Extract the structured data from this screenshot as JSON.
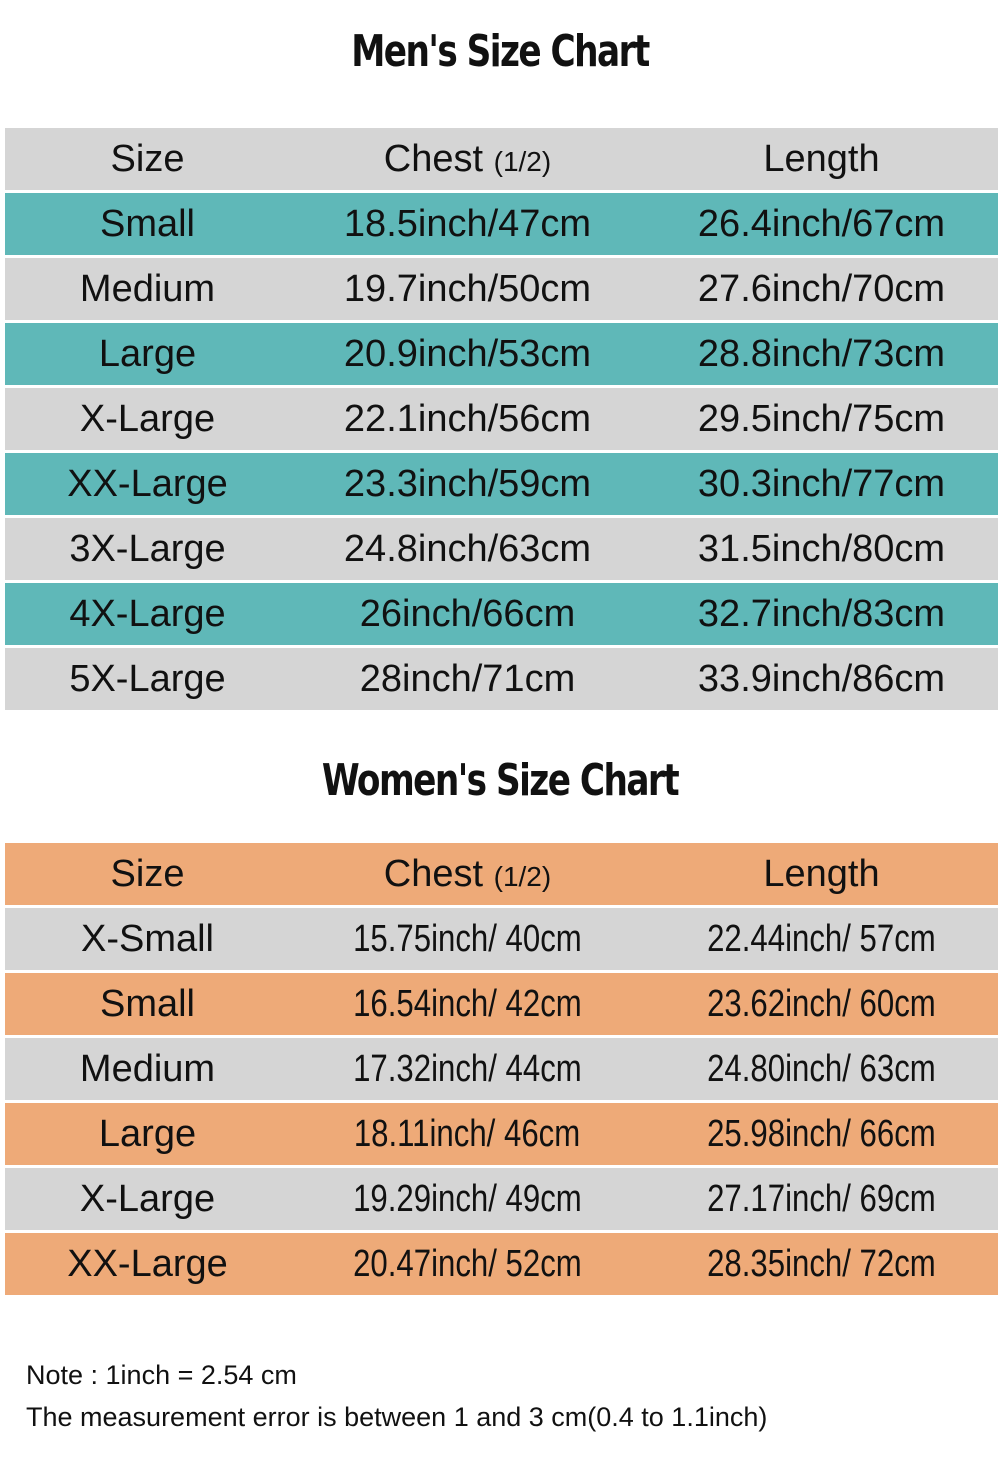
{
  "colors": {
    "gray": "#d5d5d5",
    "teal": "#5fb8b8",
    "orange": "#eeaa78"
  },
  "men": {
    "title": "Men's Size Chart",
    "headers": {
      "size": "Size",
      "chest": "Chest",
      "chest_note": "(1/2)",
      "length": "Length"
    },
    "rows": [
      {
        "size": "Small",
        "chest": "18.5inch/47cm",
        "length": "26.4inch/67cm"
      },
      {
        "size": "Medium",
        "chest": "19.7inch/50cm",
        "length": "27.6inch/70cm"
      },
      {
        "size": "Large",
        "chest": "20.9inch/53cm",
        "length": "28.8inch/73cm"
      },
      {
        "size": "X-Large",
        "chest": "22.1inch/56cm",
        "length": "29.5inch/75cm"
      },
      {
        "size": "XX-Large",
        "chest": "23.3inch/59cm",
        "length": "30.3inch/77cm"
      },
      {
        "size": "3X-Large",
        "chest": "24.8inch/63cm",
        "length": "31.5inch/80cm"
      },
      {
        "size": "4X-Large",
        "chest": "26inch/66cm",
        "length": "32.7inch/83cm"
      },
      {
        "size": "5X-Large",
        "chest": "28inch/71cm",
        "length": "33.9inch/86cm"
      }
    ]
  },
  "women": {
    "title": "Women's Size Chart",
    "headers": {
      "size": "Size",
      "chest": "Chest",
      "chest_note": "(1/2)",
      "length": "Length"
    },
    "rows": [
      {
        "size": "X-Small",
        "chest": "15.75inch/ 40cm",
        "length": "22.44inch/ 57cm"
      },
      {
        "size": "Small",
        "chest": "16.54inch/ 42cm",
        "length": "23.62inch/ 60cm"
      },
      {
        "size": "Medium",
        "chest": "17.32inch/ 44cm",
        "length": "24.80inch/ 63cm"
      },
      {
        "size": "Large",
        "chest": "18.11inch/ 46cm",
        "length": "25.98inch/ 66cm"
      },
      {
        "size": "X-Large",
        "chest": "19.29inch/ 49cm",
        "length": "27.17inch/ 69cm"
      },
      {
        "size": "XX-Large",
        "chest": "20.47inch/ 52cm",
        "length": "28.35inch/ 72cm"
      }
    ]
  },
  "notes": {
    "conversion": "Note : 1inch = 2.54 cm",
    "error": "The measurement error is between 1 and 3 cm(0.4 to 1.1inch)"
  }
}
